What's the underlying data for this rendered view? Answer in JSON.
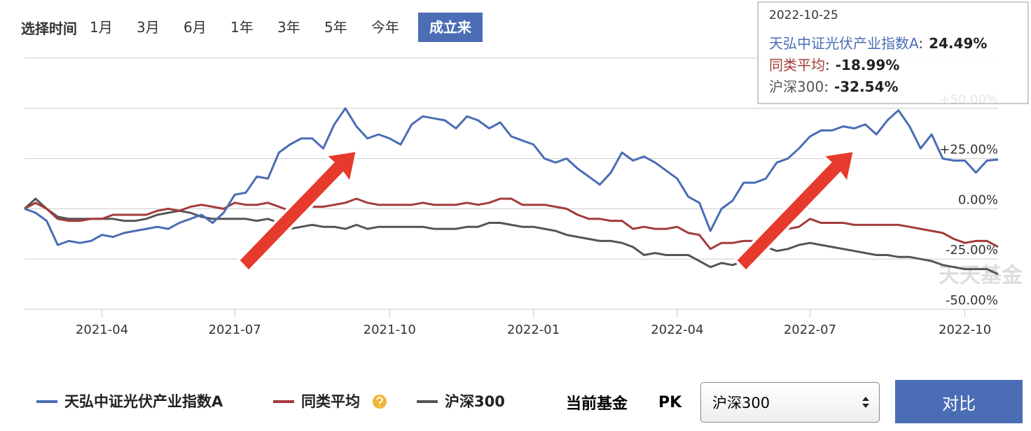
{
  "time_selector": {
    "label": "选择时间",
    "options": [
      "1月",
      "3月",
      "6月",
      "1年",
      "3年",
      "5年",
      "今年",
      "成立来"
    ],
    "selected": 7
  },
  "chart_data": {
    "type": "line",
    "categories": [
      null,
      null,
      null,
      null,
      null,
      null,
      null,
      "2021-04",
      null,
      null,
      null,
      null,
      null,
      null,
      null,
      null,
      null,
      null,
      null,
      "2021-07",
      null,
      null,
      null,
      null,
      null,
      null,
      null,
      null,
      null,
      null,
      null,
      null,
      null,
      "2021-10",
      null,
      null,
      null,
      null,
      null,
      null,
      null,
      null,
      null,
      null,
      null,
      null,
      "2022-01",
      null,
      null,
      null,
      null,
      null,
      null,
      null,
      null,
      null,
      null,
      null,
      null,
      "2022-04",
      null,
      null,
      null,
      null,
      null,
      null,
      null,
      null,
      null,
      null,
      null,
      "2022-07",
      null,
      null,
      null,
      null,
      null,
      null,
      null,
      null,
      null,
      null,
      null,
      null,
      null,
      "2022-10",
      null,
      null,
      null
    ],
    "series": [
      {
        "name": "天弘中证光伏产业指数A",
        "color": "#4a6db5",
        "values": [
          0,
          -2,
          -6,
          -18,
          -16,
          -17,
          -16,
          -13,
          -14,
          -12,
          -11,
          -10,
          -9,
          -10,
          -7,
          -5,
          -3,
          -7,
          -2,
          7,
          8,
          16,
          15,
          28,
          32,
          35,
          35,
          30,
          42,
          50,
          41,
          35,
          37,
          35,
          32,
          42,
          46,
          45,
          44,
          40,
          46,
          44,
          40,
          43,
          36,
          34,
          32,
          25,
          23,
          25,
          20,
          16,
          12,
          18,
          28,
          24,
          26,
          23,
          19,
          15,
          6,
          3,
          -11,
          0,
          4,
          13,
          13,
          15,
          23,
          25,
          30,
          36,
          39,
          39,
          41,
          40,
          42,
          37,
          44,
          49,
          41,
          30,
          37,
          25,
          24,
          24,
          18,
          24,
          24.49
        ]
      },
      {
        "name": "同类平均",
        "color": "#a33b3b",
        "values": [
          0,
          3,
          0,
          -5,
          -6,
          -6,
          -5,
          -5,
          -3,
          -3,
          -3,
          -3,
          -1,
          0,
          -1,
          1,
          2,
          1,
          0,
          3,
          2,
          2,
          3,
          1,
          -1,
          2,
          1,
          1,
          2,
          3,
          5,
          3,
          2,
          2,
          2,
          2,
          3,
          2,
          2,
          2,
          3,
          2,
          3,
          5,
          5,
          2,
          2,
          2,
          1,
          0,
          -3,
          -5,
          -5,
          -6,
          -6,
          -10,
          -9,
          -10,
          -10,
          -9,
          -12,
          -13,
          -20,
          -17,
          -17,
          -16,
          -16,
          -14,
          -13,
          -10,
          -9,
          -5,
          -7,
          -7,
          -7,
          -8,
          -8,
          -8,
          -8,
          -8,
          -9,
          -10,
          -11,
          -12,
          -15,
          -17,
          -16,
          -16,
          -18.99
        ]
      },
      {
        "name": "沪深300",
        "color": "#555555",
        "values": [
          0,
          5,
          0,
          -4,
          -5,
          -5,
          -5,
          -5,
          -5,
          -6,
          -6,
          -5,
          -3,
          -2,
          -1,
          -2,
          -4,
          -5,
          -5,
          -5,
          -5,
          -6,
          -5,
          -7,
          -10,
          -9,
          -8,
          -9,
          -9,
          -10,
          -8,
          -10,
          -9,
          -9,
          -9,
          -9,
          -9,
          -10,
          -10,
          -10,
          -9,
          -9,
          -7,
          -7,
          -8,
          -9,
          -9,
          -10,
          -11,
          -13,
          -14,
          -15,
          -16,
          -16,
          -17,
          -19,
          -23,
          -22,
          -23,
          -23,
          -23,
          -26,
          -29,
          -27,
          -28,
          -26,
          -19,
          -19,
          -21,
          -20,
          -18,
          -17,
          -18,
          -19,
          -20,
          -21,
          -22,
          -23,
          -23,
          -24,
          -24,
          -25,
          -26,
          -28,
          -29,
          -30,
          -30,
          -30,
          -32.54
        ]
      }
    ],
    "ylim": [
      -50,
      75
    ],
    "yticks": [
      {
        "value": -50,
        "label": "-50.00%"
      },
      {
        "value": -25,
        "label": "-25.00%"
      },
      {
        "value": 0,
        "label": "0.00%"
      },
      {
        "value": 25,
        "label": "+25.00%"
      },
      {
        "value": 50,
        "label": "+50.00%"
      }
    ],
    "grid": true,
    "tooltip": {
      "date": "2022-10-25",
      "separator": ":",
      "values": [
        "24.49%",
        "-18.99%",
        "-32.54%"
      ]
    },
    "watermark": "天天基金"
  },
  "controls": {
    "label": "当前基金",
    "pk": "PK",
    "select": "沪深300",
    "button": "对比"
  }
}
